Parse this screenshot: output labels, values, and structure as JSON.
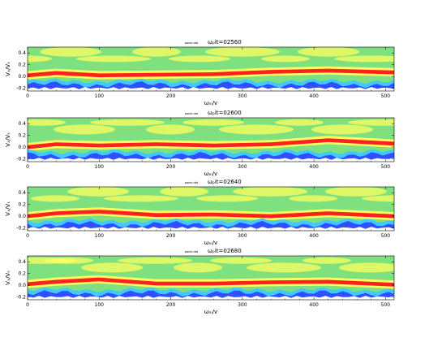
{
  "chart_data": {
    "type": "heatmap",
    "xlabel": "ωₙᵢ/v",
    "ylabel": "Vₓ/Vₛ",
    "xlim": [
      0,
      512
    ],
    "ylim": [
      -0.25,
      0.5
    ],
    "x_ticks": [
      0,
      100,
      200,
      300,
      400,
      500
    ],
    "y_ticks": [
      -0.2,
      0.0,
      0.2,
      0.4
    ],
    "x_tick_labels": [
      "0",
      "100",
      "200",
      "300",
      "400",
      "500"
    ],
    "y_tick_labels": [
      "-0.2",
      "0.0",
      "0.2",
      "0.4"
    ],
    "colormap": [
      "#ffffff",
      "#3050ff",
      "#40c8ff",
      "#ffff60",
      "#7ee07e",
      "#ff2020"
    ],
    "panels": [
      {
        "file_label": "panel.dat",
        "title": "ωₚit=02560",
        "red_band_center_y": [
          0.02,
          0.06,
          0.02,
          0.03,
          0.04,
          0.08,
          0.1,
          0.07
        ],
        "red_band_x": [
          0,
          40,
          100,
          180,
          260,
          340,
          420,
          512
        ]
      },
      {
        "file_label": "panel.dat",
        "title": "ωₚit=02600",
        "red_band_center_y": [
          0.0,
          0.05,
          0.03,
          0.05,
          0.03,
          0.05,
          0.12,
          0.06
        ],
        "red_band_x": [
          0,
          40,
          100,
          180,
          260,
          340,
          420,
          512
        ]
      },
      {
        "file_label": "panel.dat",
        "title": "ωₚit=02640",
        "red_band_center_y": [
          0.0,
          0.05,
          0.08,
          0.02,
          0.03,
          0.0,
          0.05,
          0.0
        ],
        "red_band_x": [
          0,
          40,
          100,
          180,
          260,
          340,
          420,
          512
        ]
      },
      {
        "file_label": "panel.dat",
        "title": "ωₚit=02680",
        "red_band_center_y": [
          0.02,
          0.06,
          0.1,
          0.03,
          0.03,
          0.05,
          0.06,
          0.01
        ],
        "red_band_x": [
          0,
          40,
          100,
          180,
          260,
          340,
          420,
          512
        ]
      }
    ]
  }
}
